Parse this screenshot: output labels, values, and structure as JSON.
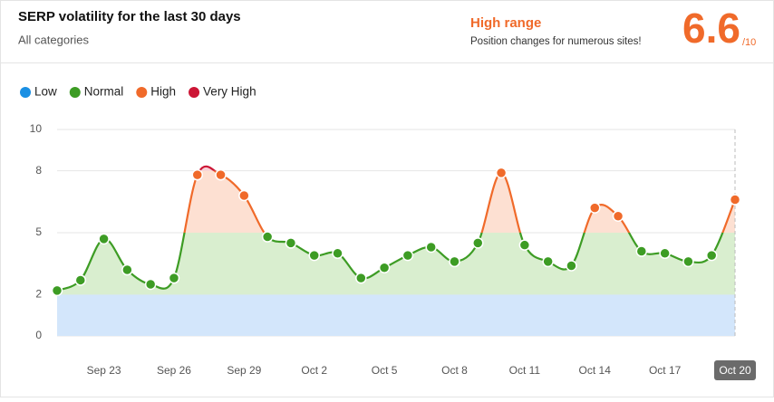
{
  "header": {
    "title": "SERP volatility for the last 30 days",
    "subtitle": "All categories",
    "range_label": "High range",
    "range_note": "Position changes for numerous sites!",
    "score": "6.6",
    "score_max": "/10"
  },
  "chart_data": {
    "type": "line",
    "categories": [
      null,
      null,
      "Sep 23",
      null,
      null,
      "Sep 26",
      null,
      null,
      "Sep 29",
      null,
      null,
      "Oct 2",
      null,
      null,
      "Oct 5",
      null,
      null,
      "Oct 8",
      null,
      null,
      "Oct 11",
      null,
      null,
      "Oct 14",
      null,
      null,
      "Oct 17",
      null,
      null,
      "Oct 20"
    ],
    "values": [
      2.2,
      2.7,
      4.7,
      3.2,
      2.5,
      2.8,
      7.8,
      7.8,
      6.8,
      4.8,
      4.5,
      3.9,
      4.0,
      2.8,
      3.3,
      3.9,
      4.3,
      3.6,
      4.5,
      7.9,
      4.4,
      3.6,
      3.4,
      6.2,
      5.8,
      4.1,
      4.0,
      3.6,
      3.9,
      6.6
    ],
    "ylim": [
      0,
      10
    ],
    "yticks": [
      0,
      2,
      5,
      8,
      10
    ],
    "grid": true,
    "bands": [
      {
        "name": "Low",
        "color": "#1a8fe3",
        "fill": "#d3e6fb",
        "range": [
          0,
          2
        ]
      },
      {
        "name": "Normal",
        "color": "#3d9c24",
        "fill": "#d9eecf",
        "range": [
          2,
          5
        ]
      },
      {
        "name": "High",
        "color": "#f06a2a",
        "fill": "#fde0d2",
        "range": [
          5,
          8
        ]
      },
      {
        "name": "Very High",
        "color": "#cc1535",
        "fill": "#f8d0d6",
        "range": [
          8,
          10
        ]
      }
    ]
  }
}
